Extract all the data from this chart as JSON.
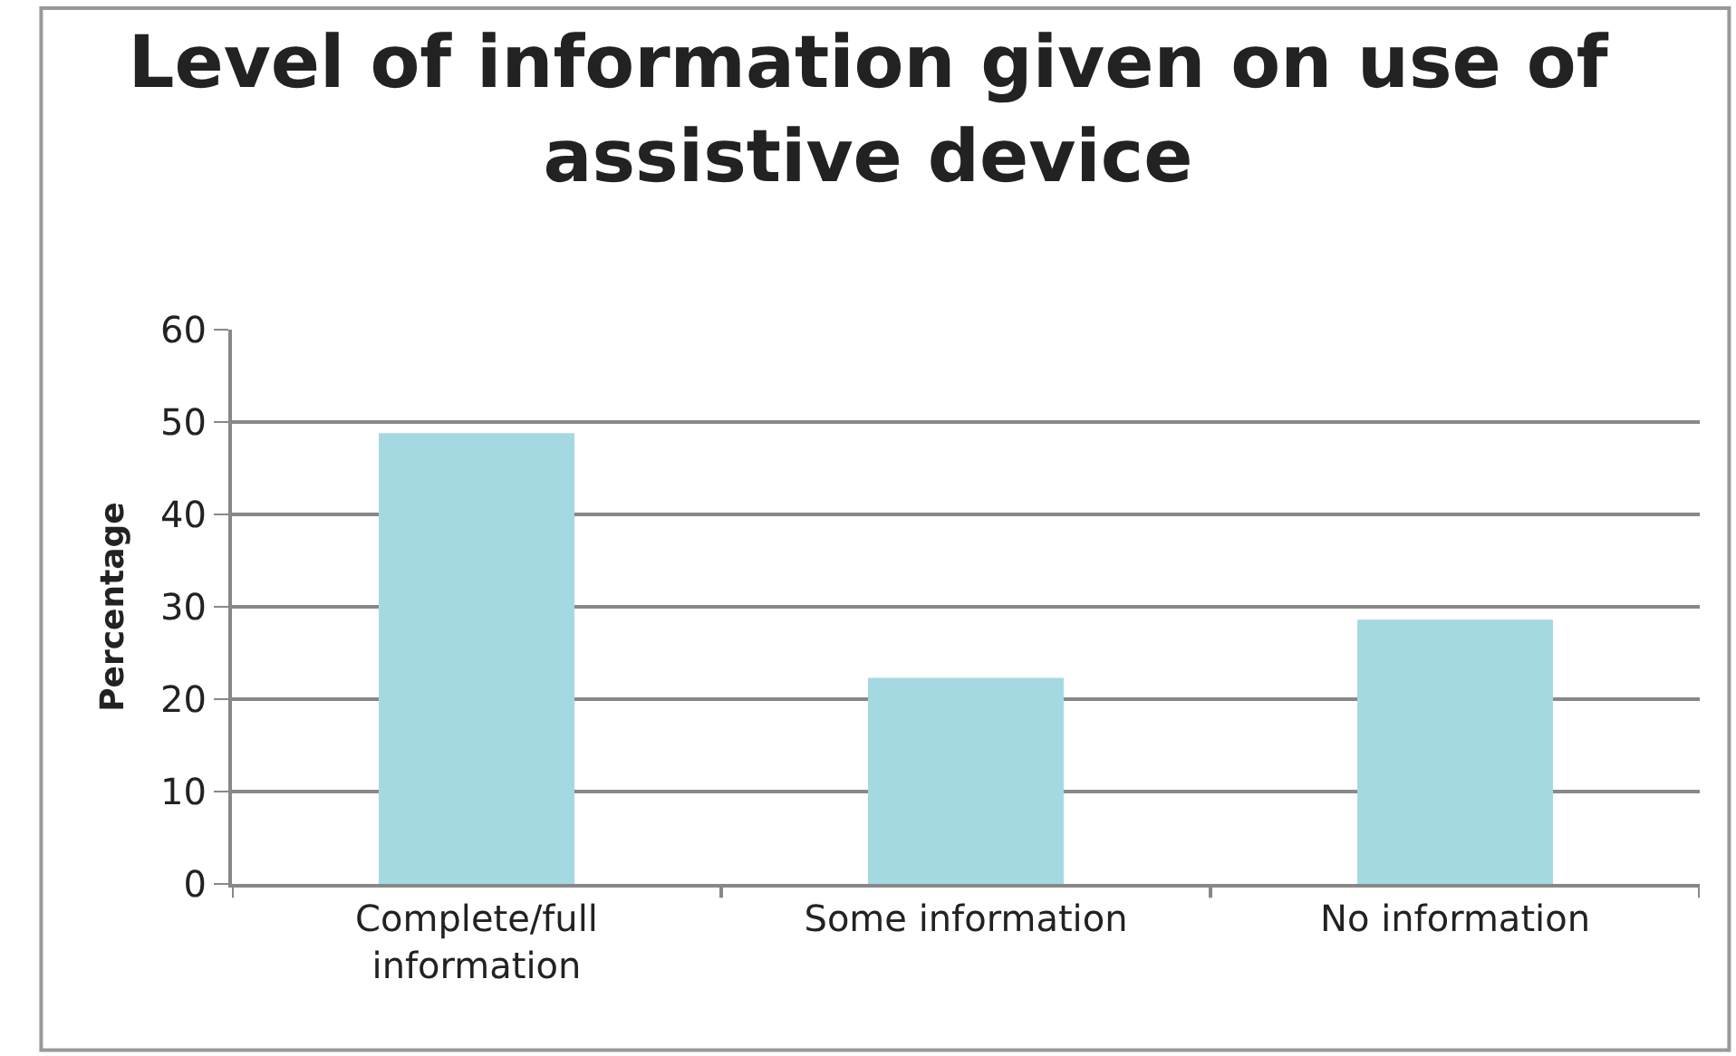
{
  "chart_data": {
    "type": "bar",
    "title": "Level of information given on use of\nassistive device",
    "ylabel": "Percentage",
    "categories": [
      "Complete/full\ninformation",
      "Some information",
      "No information"
    ],
    "values": [
      48.8,
      22.3,
      28.6
    ],
    "color": "#a5d9e2",
    "ylim": [
      0,
      60
    ],
    "yticks": [
      0,
      10,
      20,
      30,
      40,
      50,
      60
    ],
    "grid": "y"
  }
}
